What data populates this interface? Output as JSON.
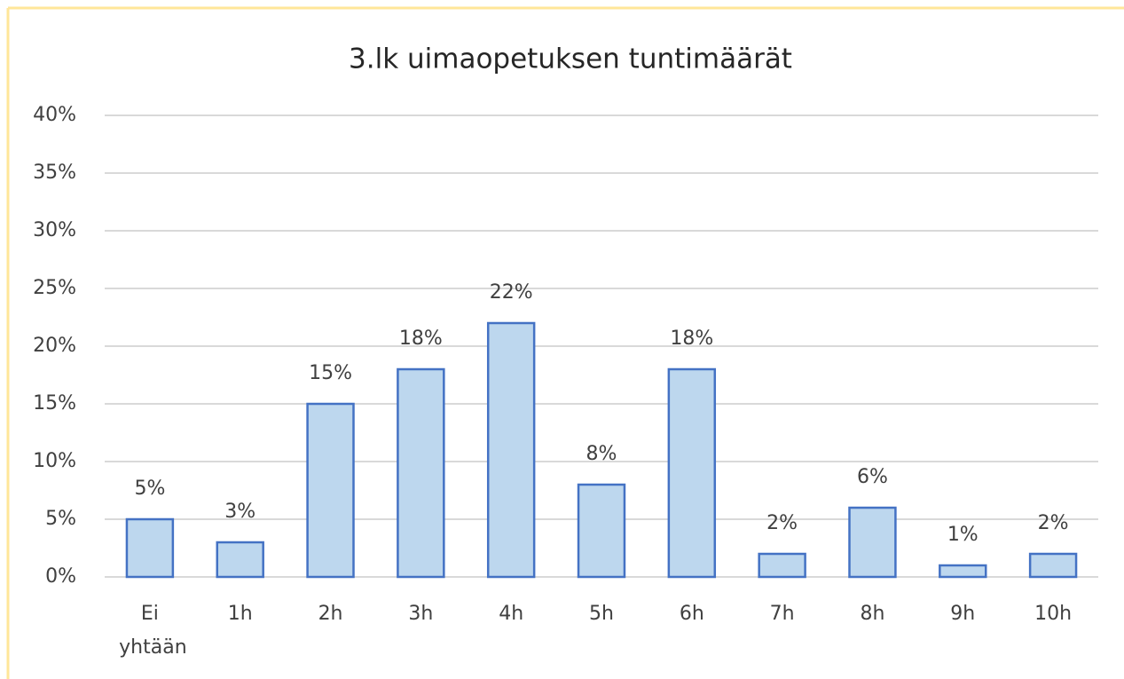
{
  "chart_data": {
    "type": "bar",
    "title": "3.lk uimaopetuksen  tuntimäärät",
    "categories": [
      "Ei yhtään",
      "1h",
      "2h",
      "3h",
      "4h",
      "5h",
      "6h",
      "7h",
      "8h",
      "9h",
      "10h"
    ],
    "values": [
      5,
      3,
      15,
      18,
      22,
      8,
      18,
      2,
      6,
      1,
      2
    ],
    "value_labels": [
      "5%",
      "3%",
      "15%",
      "18%",
      "22%",
      "8%",
      "18%",
      "2%",
      "6%",
      "1%",
      "2%"
    ],
    "color": "#bdd7ee",
    "edge_color": "#4472c4",
    "ylim": [
      0,
      40
    ],
    "yticks": [
      {
        "value": 0,
        "label": "0%"
      },
      {
        "value": 5,
        "label": "5%"
      },
      {
        "value": 10,
        "label": "10%"
      },
      {
        "value": 15,
        "label": "15%"
      },
      {
        "value": 20,
        "label": "20%"
      },
      {
        "value": 25,
        "label": "25%"
      },
      {
        "value": 30,
        "label": "30%"
      },
      {
        "value": 35,
        "label": "35%"
      },
      {
        "value": 40,
        "label": "40%"
      }
    ],
    "grid": true
  }
}
